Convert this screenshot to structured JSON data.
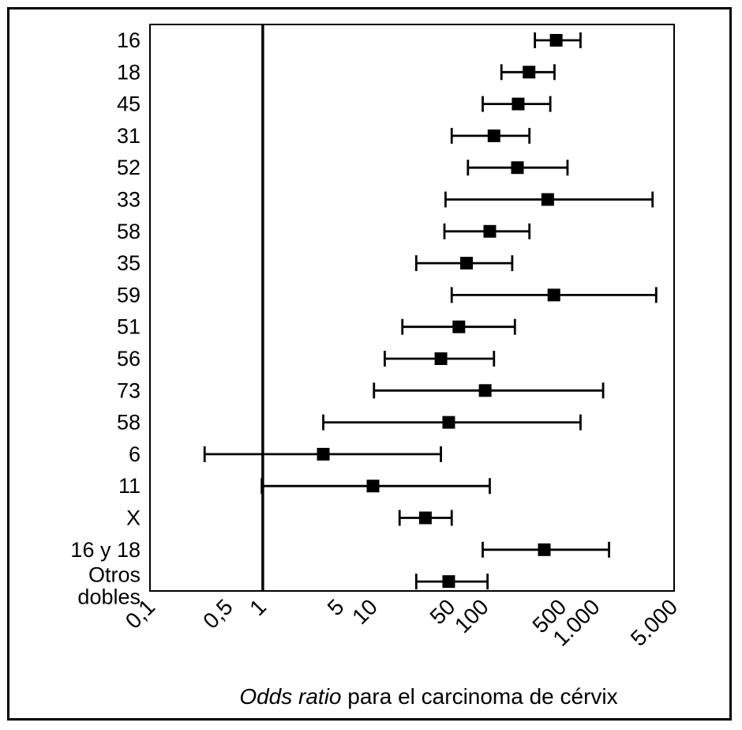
{
  "chart_data": {
    "type": "forest",
    "xscale": "log",
    "xlim": [
      0.1,
      5000
    ],
    "reference_line": 1,
    "xticks": [
      0.1,
      0.5,
      1,
      5,
      10,
      50,
      100,
      500,
      1000,
      5000
    ],
    "xtick_labels": [
      "0,1",
      "0,5",
      "1",
      "5",
      "10",
      "50",
      "100",
      "500",
      "1.000",
      "5.000"
    ],
    "xlabel_italic": "Odds ratio",
    "xlabel_rest": " para el carcinoma de cérvix",
    "rows": [
      {
        "label": [
          "16"
        ],
        "or": 435,
        "lo": 280,
        "hi": 720
      },
      {
        "label": [
          "18"
        ],
        "or": 248,
        "lo": 140,
        "hi": 420
      },
      {
        "label": [
          "45"
        ],
        "or": 198,
        "lo": 95,
        "hi": 385
      },
      {
        "label": [
          "31"
        ],
        "or": 120,
        "lo": 50,
        "hi": 250
      },
      {
        "label": [
          "52"
        ],
        "or": 195,
        "lo": 70,
        "hi": 550
      },
      {
        "label": [
          "33"
        ],
        "or": 365,
        "lo": 44,
        "hi": 3200
      },
      {
        "label": [
          "58"
        ],
        "or": 110,
        "lo": 43,
        "hi": 250
      },
      {
        "label": [
          "35"
        ],
        "or": 68,
        "lo": 24,
        "hi": 175
      },
      {
        "label": [
          "59"
        ],
        "or": 415,
        "lo": 50,
        "hi": 3450
      },
      {
        "label": [
          "51"
        ],
        "or": 58,
        "lo": 18,
        "hi": 185
      },
      {
        "label": [
          "56"
        ],
        "or": 40,
        "lo": 12.5,
        "hi": 120
      },
      {
        "label": [
          "73"
        ],
        "or": 100,
        "lo": 10,
        "hi": 1150
      },
      {
        "label": [
          "58"
        ],
        "or": 47,
        "lo": 3.5,
        "hi": 720
      },
      {
        "label": [
          "6"
        ],
        "or": 3.5,
        "lo": 0.3,
        "hi": 40
      },
      {
        "label": [
          "11"
        ],
        "or": 9.8,
        "lo": 0.98,
        "hi": 110
      },
      {
        "label": [
          "X"
        ],
        "or": 29,
        "lo": 17,
        "hi": 50
      },
      {
        "label": [
          "16 y 18"
        ],
        "or": 340,
        "lo": 95,
        "hi": 1300
      },
      {
        "label": [
          "Otros",
          "dobles"
        ],
        "or": 47,
        "lo": 24,
        "hi": 105
      }
    ]
  }
}
